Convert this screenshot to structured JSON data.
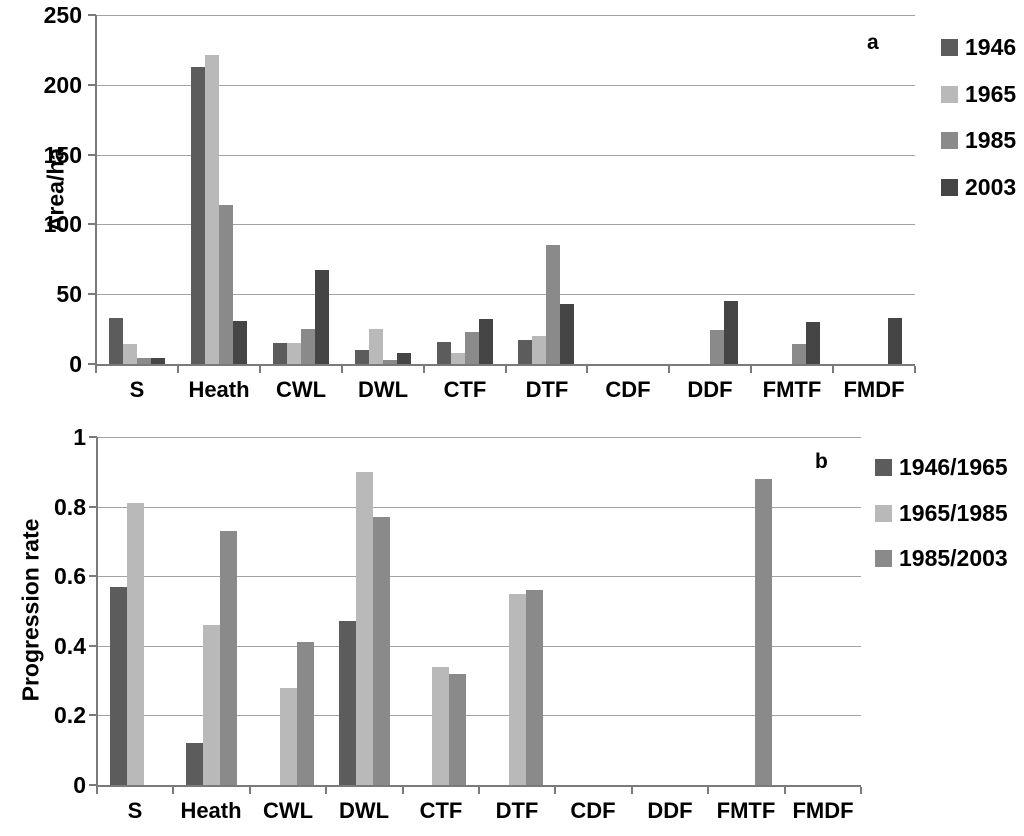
{
  "figure": {
    "background": "#ffffff",
    "text_color": "#000000",
    "gridline_color": "#a3a3a3",
    "axis_color": "#7a7a7a"
  },
  "chart_data": [
    {
      "type": "bar",
      "panel_label": "a",
      "ylabel": "Area/ha",
      "xlabel": "",
      "ylim": [
        0,
        250
      ],
      "ytick_step": 50,
      "ytick_labels": [
        "250",
        "200",
        "150",
        "100",
        "50",
        "0"
      ],
      "grid": true,
      "legend_position": "right-top",
      "categories": [
        "S",
        "Heath",
        "CWL",
        "DWL",
        "CTF",
        "DTF",
        "CDF",
        "DDF",
        "FMTF",
        "FMDF"
      ],
      "series": [
        {
          "name": "1946",
          "color": "#5c5c5c",
          "values": [
            33,
            213,
            15,
            10,
            16,
            17,
            0,
            0,
            0,
            0
          ]
        },
        {
          "name": "1965",
          "color": "#b9b9b9",
          "values": [
            14,
            221,
            15,
            25,
            8,
            20,
            0,
            0,
            0,
            0
          ]
        },
        {
          "name": "1985",
          "color": "#8a8a8a",
          "values": [
            4,
            114,
            25,
            3,
            23,
            85,
            0,
            24,
            14,
            0
          ]
        },
        {
          "name": "2003",
          "color": "#454545",
          "values": [
            4,
            31,
            67,
            8,
            32,
            43,
            0,
            45,
            30,
            33
          ]
        }
      ]
    },
    {
      "type": "bar",
      "panel_label": "b",
      "ylabel": "Progression rate",
      "xlabel": "",
      "ylim": [
        0,
        1
      ],
      "ytick_step": 0.2,
      "ytick_labels": [
        "1",
        "0.8",
        "0.6",
        "0.4",
        "0.2",
        "0"
      ],
      "grid": true,
      "legend_position": "right-top",
      "categories": [
        "S",
        "Heath",
        "CWL",
        "DWL",
        "CTF",
        "DTF",
        "CDF",
        "DDF",
        "FMTF",
        "FMDF"
      ],
      "series": [
        {
          "name": "1946/1965",
          "color": "#5c5c5c",
          "values": [
            0.57,
            0.12,
            0,
            0.47,
            0,
            0,
            0,
            0,
            0,
            0
          ]
        },
        {
          "name": "1965/1985",
          "color": "#b9b9b9",
          "values": [
            0.81,
            0.46,
            0.28,
            0.9,
            0.34,
            0.55,
            0,
            0,
            0,
            0
          ]
        },
        {
          "name": "1985/2003",
          "color": "#8a8a8a",
          "values": [
            0,
            0.73,
            0.41,
            0.77,
            0.32,
            0.56,
            0,
            0,
            0.88,
            0
          ]
        }
      ]
    }
  ]
}
